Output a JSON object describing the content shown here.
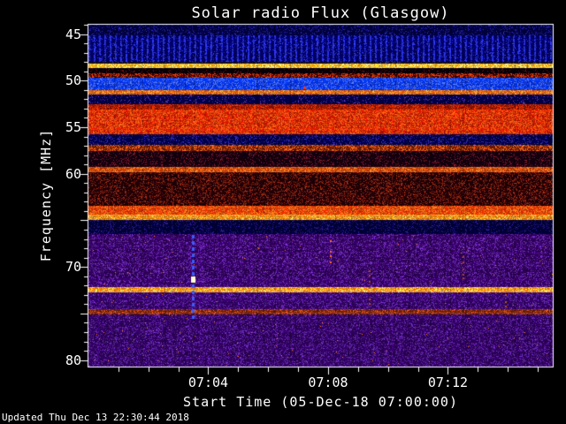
{
  "footer": "Updated Thu Dec 13 22:30:44 2018",
  "chart_data": {
    "type": "heatmap",
    "title": "Solar radio Flux (Glasgow)",
    "xlabel": "Start Time (05-Dec-18 07:00:00)",
    "ylabel": "Frequency [MHz]",
    "colors": {
      "background": "#000000",
      "frame": "#ffffff",
      "text": "#ffffff"
    },
    "x_axis": {
      "start_minute": 0,
      "end_minute": 15.5,
      "major_ticks": [
        {
          "minute": 4,
          "label": "07:04"
        },
        {
          "minute": 8,
          "label": "07:08"
        },
        {
          "minute": 12,
          "label": "07:12"
        }
      ],
      "minor_tick_every_min": 1
    },
    "y_axis": {
      "min": 44.0,
      "max": 80.7,
      "labeled_ticks": [
        45,
        50,
        55,
        60,
        70,
        80
      ],
      "major_tick_every_mhz": 5,
      "minor_tick_every_mhz": 1
    },
    "bands": [
      {
        "name": "top dark blue noise",
        "f0": 44.0,
        "f1": 45.1,
        "base": "#000040",
        "speckle": "#2020a0",
        "density": 0.18
      },
      {
        "name": "blue speckle band",
        "f0": 45.1,
        "f1": 47.9,
        "base": "#000060",
        "speckle": "#2830e0",
        "density": 0.42,
        "columnar": true
      },
      {
        "name": "dark gap",
        "f0": 47.9,
        "f1": 48.1,
        "base": "#100818",
        "speckle": "#303060",
        "density": 0.15
      },
      {
        "name": "bright yellow-orange line",
        "f0": 48.1,
        "f1": 48.6,
        "base": "#ffac10",
        "speckle": "#ffe880",
        "density": 0.45
      },
      {
        "name": "dark band",
        "f0": 48.6,
        "f1": 49.15,
        "base": "#050008",
        "speckle": "#601010",
        "density": 0.12
      },
      {
        "name": "red speckle row",
        "f0": 49.15,
        "f1": 49.7,
        "base": "#300000",
        "speckle": "#cc3810",
        "density": 0.5
      },
      {
        "name": "bright blue band",
        "f0": 49.7,
        "f1": 50.95,
        "base": "#0030e8",
        "speckle": "#4868ff",
        "density": 0.35
      },
      {
        "name": "orange line 51 MHz",
        "f0": 50.95,
        "f1": 51.45,
        "base": "#e85800",
        "speckle": "#ff9030",
        "density": 0.45
      },
      {
        "name": "dark blue band",
        "f0": 51.45,
        "f1": 52.55,
        "base": "#000048",
        "speckle": "#5030a0",
        "density": 0.14
      },
      {
        "name": "red transition",
        "f0": 52.55,
        "f1": 53.1,
        "base": "#901000",
        "speckle": "#e03000",
        "density": 0.5
      },
      {
        "name": "strong red emission band",
        "f0": 53.1,
        "f1": 55.7,
        "base": "#cc1400",
        "speckle": "#ff5010",
        "density": 0.55
      },
      {
        "name": "dark blue band",
        "f0": 55.7,
        "f1": 56.85,
        "base": "#000044",
        "speckle": "#3028a0",
        "density": 0.22
      },
      {
        "name": "broken orange line 57 MHz",
        "f0": 56.85,
        "f1": 57.55,
        "base": "#601800",
        "speckle": "#ff5818",
        "density": 0.45
      },
      {
        "name": "dark maroon band",
        "f0": 57.55,
        "f1": 59.3,
        "base": "#14000e",
        "speckle": "#701828",
        "density": 0.18
      },
      {
        "name": "orange line 59.5 MHz",
        "f0": 59.3,
        "f1": 59.85,
        "base": "#c83800",
        "speckle": "#ff7020",
        "density": 0.5
      },
      {
        "name": "dark red speckle field",
        "f0": 59.85,
        "f1": 63.45,
        "base": "#1e0006",
        "speckle": "#8c2410",
        "density": 0.3
      },
      {
        "name": "bright red band 64 MHz",
        "f0": 63.45,
        "f1": 64.35,
        "base": "#d82800",
        "speckle": "#ff6818",
        "density": 0.55
      },
      {
        "name": "orange line 65 MHz",
        "f0": 64.35,
        "f1": 64.95,
        "base": "#f07800",
        "speckle": "#ffb040",
        "density": 0.5
      },
      {
        "name": "dark blue band",
        "f0": 64.95,
        "f1": 66.5,
        "base": "#000038",
        "speckle": "#281880",
        "density": 0.18
      },
      {
        "name": "violet field upper",
        "f0": 66.5,
        "f1": 72.15,
        "base": "#30005c",
        "speckle": "#6428a8",
        "density": 0.3,
        "rare": "#ff8000",
        "rare_density": 0.002
      },
      {
        "name": "bright orange line 72.5",
        "f0": 72.15,
        "f1": 72.75,
        "base": "#ff7800",
        "speckle": "#ffc050",
        "density": 0.55
      },
      {
        "name": "violet field middle",
        "f0": 72.75,
        "f1": 74.55,
        "base": "#300060",
        "speckle": "#6028a8",
        "density": 0.3,
        "rare": "#ff8000",
        "rare_density": 0.0015
      },
      {
        "name": "dim red broken line 75",
        "f0": 74.55,
        "f1": 75.1,
        "base": "#702010",
        "speckle": "#c04818",
        "density": 0.4
      },
      {
        "name": "violet field lower",
        "f0": 75.1,
        "f1": 80.7,
        "base": "#2c0058",
        "speckle": "#5c24a0",
        "density": 0.3,
        "rare": "#ff8000",
        "rare_density": 0.003
      }
    ],
    "events": {
      "dashed_line": {
        "minute": 3.48,
        "f0": 66.6,
        "f1": 75.6,
        "color": "#3a5cff"
      },
      "bright_spot": {
        "minute": 3.48,
        "freq": 71.3,
        "color": "#ffffd0"
      },
      "dots": [
        {
          "minute": 7.2,
          "freq": 50.7,
          "color": "#ff3000"
        }
      ],
      "dot_streaks": [
        {
          "minute": 8.05,
          "f0": 67.0,
          "f1": 69.4,
          "color": "#ff7020"
        },
        {
          "minute": 9.35,
          "f0": 70.3,
          "f1": 74.2,
          "color": "#b44c18"
        },
        {
          "minute": 12.5,
          "f0": 68.8,
          "f1": 71.6,
          "color": "#a84418"
        },
        {
          "minute": 13.9,
          "f0": 72.9,
          "f1": 75.2,
          "color": "#b0501a"
        }
      ]
    }
  }
}
